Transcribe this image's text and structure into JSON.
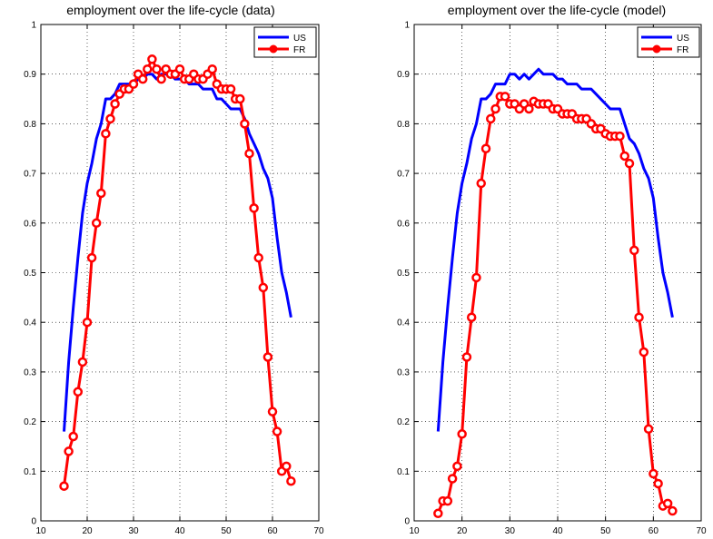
{
  "chart_data": [
    {
      "type": "line",
      "title": "employment over the life-cycle (data)",
      "xlabel": "",
      "ylabel": "",
      "xlim": [
        10,
        70
      ],
      "ylim": [
        0,
        1
      ],
      "xticks": [
        10,
        20,
        30,
        40,
        50,
        60,
        70
      ],
      "yticks": [
        0,
        0.1,
        0.2,
        0.3,
        0.4,
        0.5,
        0.6,
        0.7,
        0.8,
        0.9,
        1
      ],
      "grid": true,
      "legend": "top-right",
      "series": [
        {
          "name": "US",
          "color": "#0000ff",
          "marker": "none",
          "x": [
            15,
            16,
            17,
            18,
            19,
            20,
            21,
            22,
            23,
            24,
            25,
            26,
            27,
            28,
            29,
            30,
            31,
            32,
            33,
            34,
            35,
            36,
            37,
            38,
            39,
            40,
            41,
            42,
            43,
            44,
            45,
            46,
            47,
            48,
            49,
            50,
            51,
            52,
            53,
            54,
            55,
            56,
            57,
            58,
            59,
            60,
            61,
            62,
            63,
            64
          ],
          "y": [
            0.18,
            0.32,
            0.43,
            0.53,
            0.62,
            0.68,
            0.72,
            0.77,
            0.8,
            0.85,
            0.85,
            0.86,
            0.88,
            0.88,
            0.88,
            0.88,
            0.89,
            0.89,
            0.9,
            0.9,
            0.89,
            0.9,
            0.9,
            0.9,
            0.89,
            0.89,
            0.89,
            0.88,
            0.88,
            0.88,
            0.87,
            0.87,
            0.87,
            0.85,
            0.85,
            0.84,
            0.83,
            0.83,
            0.83,
            0.81,
            0.78,
            0.76,
            0.74,
            0.71,
            0.69,
            0.65,
            0.57,
            0.5,
            0.46,
            0.41
          ]
        },
        {
          "name": "FR",
          "color": "#ff0000",
          "marker": "circle",
          "x": [
            15,
            16,
            17,
            18,
            19,
            20,
            21,
            22,
            23,
            24,
            25,
            26,
            27,
            28,
            29,
            30,
            31,
            32,
            33,
            34,
            35,
            36,
            37,
            38,
            39,
            40,
            41,
            42,
            43,
            44,
            45,
            46,
            47,
            48,
            49,
            50,
            51,
            52,
            53,
            54,
            55,
            56,
            57,
            58,
            59,
            60,
            61,
            62,
            63,
            64
          ],
          "y": [
            0.07,
            0.14,
            0.17,
            0.26,
            0.32,
            0.4,
            0.53,
            0.6,
            0.66,
            0.78,
            0.81,
            0.84,
            0.86,
            0.87,
            0.87,
            0.88,
            0.9,
            0.89,
            0.91,
            0.93,
            0.91,
            0.89,
            0.91,
            0.9,
            0.9,
            0.91,
            0.89,
            0.89,
            0.9,
            0.89,
            0.89,
            0.9,
            0.91,
            0.88,
            0.87,
            0.87,
            0.87,
            0.85,
            0.85,
            0.8,
            0.74,
            0.63,
            0.53,
            0.47,
            0.33,
            0.22,
            0.18,
            0.1,
            0.11,
            0.08
          ]
        }
      ]
    },
    {
      "type": "line",
      "title": "employment over the life-cycle (model)",
      "xlabel": "",
      "ylabel": "",
      "xlim": [
        10,
        70
      ],
      "ylim": [
        0,
        1
      ],
      "xticks": [
        10,
        20,
        30,
        40,
        50,
        60,
        70
      ],
      "yticks": [
        0,
        0.1,
        0.2,
        0.3,
        0.4,
        0.5,
        0.6,
        0.7,
        0.8,
        0.9,
        1
      ],
      "grid": true,
      "legend": "top-right",
      "series": [
        {
          "name": "US",
          "color": "#0000ff",
          "marker": "none",
          "x": [
            15,
            16,
            17,
            18,
            19,
            20,
            21,
            22,
            23,
            24,
            25,
            26,
            27,
            28,
            29,
            30,
            31,
            32,
            33,
            34,
            35,
            36,
            37,
            38,
            39,
            40,
            41,
            42,
            43,
            44,
            45,
            46,
            47,
            48,
            49,
            50,
            51,
            52,
            53,
            54,
            55,
            56,
            57,
            58,
            59,
            60,
            61,
            62,
            63,
            64
          ],
          "y": [
            0.18,
            0.32,
            0.43,
            0.53,
            0.62,
            0.68,
            0.72,
            0.77,
            0.8,
            0.85,
            0.85,
            0.86,
            0.88,
            0.88,
            0.88,
            0.9,
            0.9,
            0.89,
            0.9,
            0.89,
            0.9,
            0.91,
            0.9,
            0.9,
            0.9,
            0.89,
            0.89,
            0.88,
            0.88,
            0.88,
            0.87,
            0.87,
            0.87,
            0.86,
            0.85,
            0.84,
            0.83,
            0.83,
            0.83,
            0.8,
            0.77,
            0.76,
            0.74,
            0.71,
            0.69,
            0.65,
            0.57,
            0.5,
            0.46,
            0.41
          ]
        },
        {
          "name": "FR",
          "color": "#ff0000",
          "marker": "circle",
          "x": [
            15,
            16,
            17,
            18,
            19,
            20,
            21,
            22,
            23,
            24,
            25,
            26,
            27,
            28,
            29,
            30,
            31,
            32,
            33,
            34,
            35,
            36,
            37,
            38,
            39,
            40,
            41,
            42,
            43,
            44,
            45,
            46,
            47,
            48,
            49,
            50,
            51,
            52,
            53,
            54,
            55,
            56,
            57,
            58,
            59,
            60,
            61,
            62,
            63,
            64
          ],
          "y": [
            0.015,
            0.04,
            0.04,
            0.085,
            0.11,
            0.175,
            0.33,
            0.41,
            0.49,
            0.68,
            0.75,
            0.81,
            0.83,
            0.855,
            0.855,
            0.84,
            0.84,
            0.83,
            0.84,
            0.83,
            0.845,
            0.84,
            0.84,
            0.84,
            0.83,
            0.83,
            0.82,
            0.82,
            0.82,
            0.81,
            0.81,
            0.81,
            0.8,
            0.79,
            0.79,
            0.78,
            0.775,
            0.775,
            0.775,
            0.735,
            0.72,
            0.545,
            0.41,
            0.34,
            0.185,
            0.095,
            0.075,
            0.03,
            0.035,
            0.02
          ]
        }
      ]
    }
  ]
}
